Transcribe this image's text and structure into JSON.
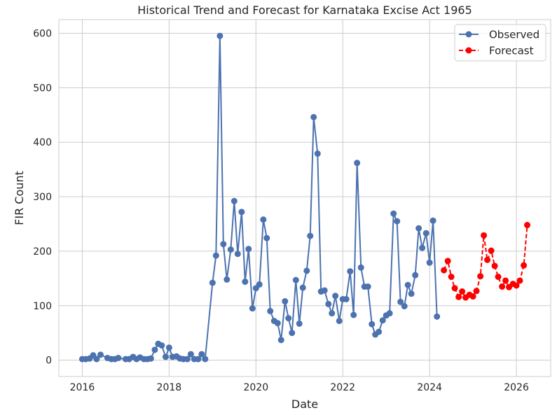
{
  "chart_data": {
    "type": "line",
    "title": "Historical Trend and Forecast for Karnataka Excise Act 1965",
    "xlabel": "Date",
    "ylabel": "FIR Count",
    "xlim": [
      2015.46,
      2026.79
    ],
    "ylim": [
      -30,
      625
    ],
    "x_ticks": [
      2016,
      2018,
      2020,
      2022,
      2024,
      2026
    ],
    "y_ticks": [
      0,
      100,
      200,
      300,
      400,
      500,
      600
    ],
    "grid": true,
    "legend_position": "top-right",
    "series": [
      {
        "name": "Observed",
        "color": "#4c72b0",
        "style": "solid",
        "x": [
          2016.0,
          2016.08,
          2016.17,
          2016.25,
          2016.33,
          2016.42,
          2016.58,
          2016.67,
          2016.75,
          2016.83,
          2017.0,
          2017.08,
          2017.17,
          2017.25,
          2017.33,
          2017.42,
          2017.5,
          2017.58,
          2017.67,
          2017.75,
          2017.83,
          2017.92,
          2018.0,
          2018.08,
          2018.17,
          2018.25,
          2018.33,
          2018.42,
          2018.5,
          2018.58,
          2018.67,
          2018.75,
          2018.83,
          2019.0,
          2019.08,
          2019.17,
          2019.25,
          2019.33,
          2019.42,
          2019.5,
          2019.58,
          2019.67,
          2019.75,
          2019.83,
          2019.92,
          2020.0,
          2020.08,
          2020.17,
          2020.25,
          2020.33,
          2020.42,
          2020.5,
          2020.58,
          2020.67,
          2020.75,
          2020.83,
          2020.92,
          2021.0,
          2021.08,
          2021.17,
          2021.25,
          2021.33,
          2021.42,
          2021.5,
          2021.58,
          2021.67,
          2021.75,
          2021.83,
          2021.92,
          2022.0,
          2022.08,
          2022.17,
          2022.25,
          2022.33,
          2022.42,
          2022.5,
          2022.58,
          2022.67,
          2022.75,
          2022.83,
          2022.92,
          2023.0,
          2023.08,
          2023.17,
          2023.25,
          2023.33,
          2023.42,
          2023.5,
          2023.58,
          2023.67,
          2023.75,
          2023.83,
          2023.92,
          2024.0,
          2024.08,
          2024.17
        ],
        "y": [
          2,
          2,
          3,
          9,
          2,
          10,
          4,
          2,
          2,
          4,
          2,
          2,
          6,
          2,
          5,
          2,
          2,
          3,
          19,
          30,
          27,
          6,
          23,
          6,
          7,
          3,
          2,
          2,
          11,
          2,
          2,
          11,
          2,
          142,
          192,
          595,
          213,
          148,
          203,
          292,
          195,
          272,
          144,
          204,
          95,
          132,
          139,
          258,
          224,
          90,
          72,
          68,
          37,
          108,
          77,
          50,
          147,
          67,
          133,
          164,
          228,
          446,
          379,
          126,
          128,
          103,
          86,
          118,
          72,
          112,
          112,
          163,
          83,
          362,
          170,
          135,
          135,
          66,
          47,
          52,
          73,
          82,
          86,
          269,
          255,
          107,
          99,
          138,
          122,
          156,
          242,
          206,
          233,
          179,
          256,
          80
        ]
      },
      {
        "name": "Forecast",
        "color": "#ff0000",
        "style": "dashed",
        "x": [
          2024.33,
          2024.42,
          2024.5,
          2024.58,
          2024.67,
          2024.75,
          2024.83,
          2024.92,
          2025.0,
          2025.08,
          2025.17,
          2025.25,
          2025.33,
          2025.42,
          2025.5,
          2025.58,
          2025.67,
          2025.75,
          2025.83,
          2025.92,
          2026.0,
          2026.08,
          2026.17,
          2026.25
        ],
        "y": [
          165,
          182,
          153,
          132,
          116,
          126,
          115,
          120,
          117,
          127,
          154,
          229,
          184,
          201,
          173,
          153,
          135,
          146,
          134,
          140,
          137,
          146,
          174,
          248
        ]
      }
    ]
  }
}
